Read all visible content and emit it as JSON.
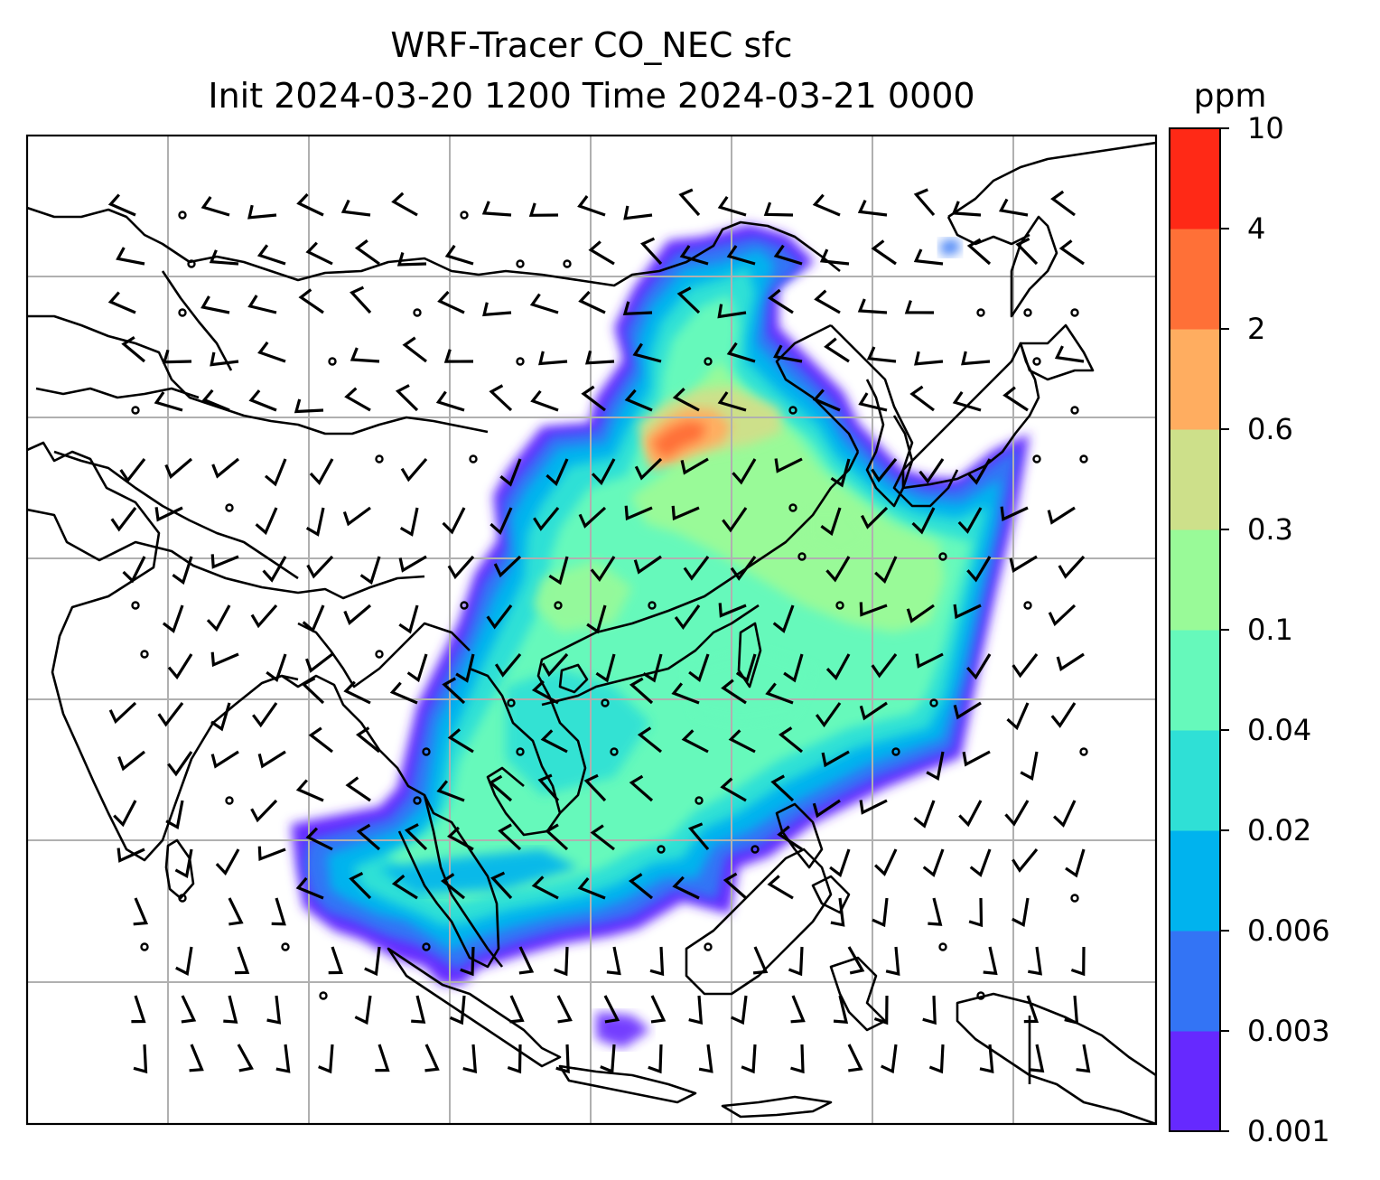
{
  "title": {
    "line1": "WRF-Tracer CO_NEC sfc",
    "line2": "Init 2024-03-20 1200 Time 2024-03-21 0000"
  },
  "colorbar": {
    "unit": "ppm",
    "levels": [
      "0.001",
      "0.003",
      "0.006",
      "0.02",
      "0.04",
      "0.1",
      "0.3",
      "0.6",
      "2",
      "4",
      "10"
    ],
    "colors": [
      "#6629ff",
      "#3374f5",
      "#00b3ee",
      "#2fe0d6",
      "#66f9bb",
      "#99fa98",
      "#cde08a",
      "#ffad60",
      "#ff7037",
      "#ff2916"
    ]
  },
  "map": {
    "type": "filled contour plume over East / Southeast Asia with wind barbs",
    "gridlines": true,
    "coastline_color": "#000000",
    "gridline_color": "#b0b0b0",
    "wind_barb_color": "#000000"
  }
}
